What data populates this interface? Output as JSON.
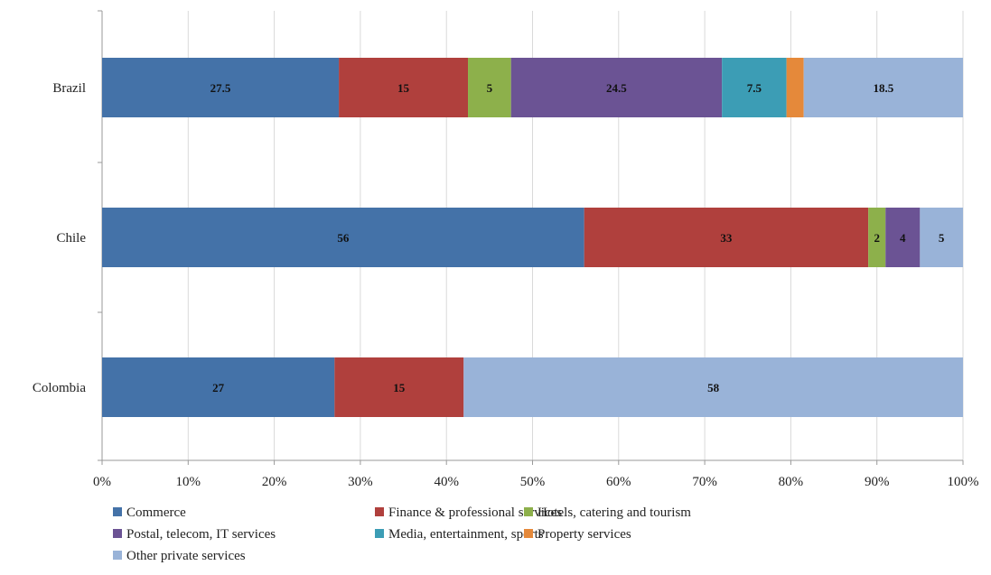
{
  "chart_data": {
    "type": "bar",
    "orientation": "horizontal",
    "stacked": true,
    "percent_stacked": true,
    "title": "",
    "xlabel": "",
    "ylabel": "",
    "xlim": [
      0,
      100
    ],
    "xticks": [
      "0%",
      "10%",
      "20%",
      "30%",
      "40%",
      "50%",
      "60%",
      "70%",
      "80%",
      "90%",
      "100%"
    ],
    "grid": "vertical",
    "legend_position": "bottom",
    "categories": [
      "Brazil",
      "Chile",
      "Colombia"
    ],
    "series": [
      {
        "name": "Commerce",
        "color": "#4472A8",
        "values": [
          27.5,
          56,
          27
        ],
        "labels": [
          "27.5",
          "56",
          "27"
        ]
      },
      {
        "name": "Finance & professional services",
        "color": "#B0403D",
        "values": [
          15,
          33,
          15
        ],
        "labels": [
          "15",
          "33",
          "15"
        ]
      },
      {
        "name": "Hotels, catering and tourism",
        "color": "#8DB04B",
        "values": [
          5,
          2,
          0
        ],
        "labels": [
          "5",
          "2",
          ""
        ]
      },
      {
        "name": "Postal, telecom, IT services",
        "color": "#6B5394",
        "values": [
          24.5,
          4,
          0
        ],
        "labels": [
          "24.5",
          "4",
          ""
        ]
      },
      {
        "name": "Media, entertainment, sports",
        "color": "#3C9DB5",
        "values": [
          7.5,
          0,
          0
        ],
        "labels": [
          "7.5",
          "",
          ""
        ]
      },
      {
        "name": "Property services",
        "color": "#E5893A",
        "values": [
          2,
          0,
          0
        ],
        "labels": [
          "",
          "",
          ""
        ]
      },
      {
        "name": "Other private services",
        "color": "#99B3D8",
        "values": [
          18.5,
          5,
          58
        ],
        "labels": [
          "18.5",
          "5",
          "58"
        ]
      }
    ]
  }
}
